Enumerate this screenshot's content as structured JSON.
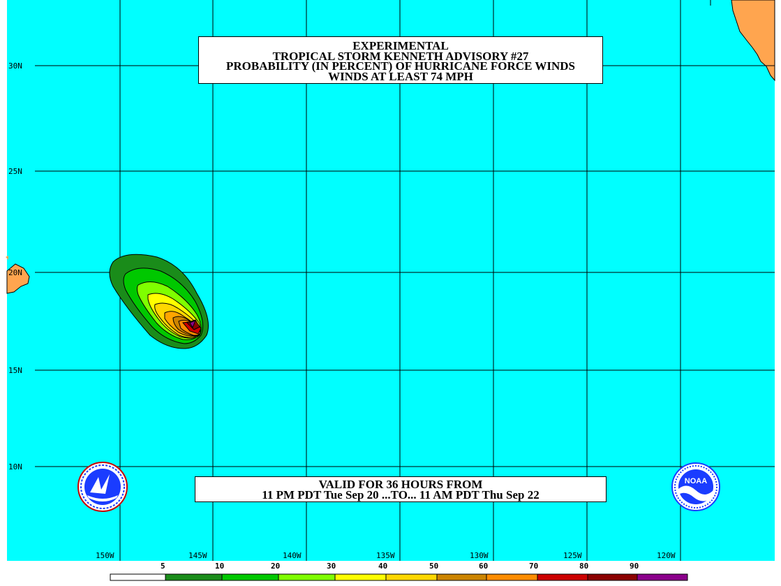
{
  "title": {
    "line1": "EXPERIMENTAL",
    "line2": "TROPICAL STORM KENNETH ADVISORY #27",
    "line3": "PROBABILITY (IN PERCENT) OF HURRICANE FORCE WINDS",
    "line4": "WINDS AT LEAST 74 MPH"
  },
  "valid": {
    "line1": "VALID FOR 36 HOURS FROM",
    "line2": "11 PM PDT Tue Sep 20 ...TO... 11 AM PDT Thu Sep 22"
  },
  "latitudes": [
    "30N",
    "25N",
    "20N",
    "15N",
    "10N"
  ],
  "longitudes": [
    "150W",
    "145W",
    "140W",
    "135W",
    "130W",
    "125W",
    "120W"
  ],
  "legend": {
    "ticks": [
      "5",
      "10",
      "20",
      "30",
      "40",
      "50",
      "60",
      "70",
      "80",
      "90"
    ],
    "colors": [
      "#ffffff",
      "#1a8c1a",
      "#00c800",
      "#7fff00",
      "#ffff00",
      "#ffd700",
      "#ffa500",
      "#cc8400",
      "#ff8c00",
      "#cc0000",
      "#8b0000",
      "#8b008b"
    ]
  },
  "colors": {
    "ocean": "#00ffff",
    "land": "#ffa54f",
    "grid": "#000000"
  },
  "logos": {
    "left": "noaa-nws-seal-icon",
    "right": "noaa-logo-icon",
    "right_text": "NOAA"
  }
}
